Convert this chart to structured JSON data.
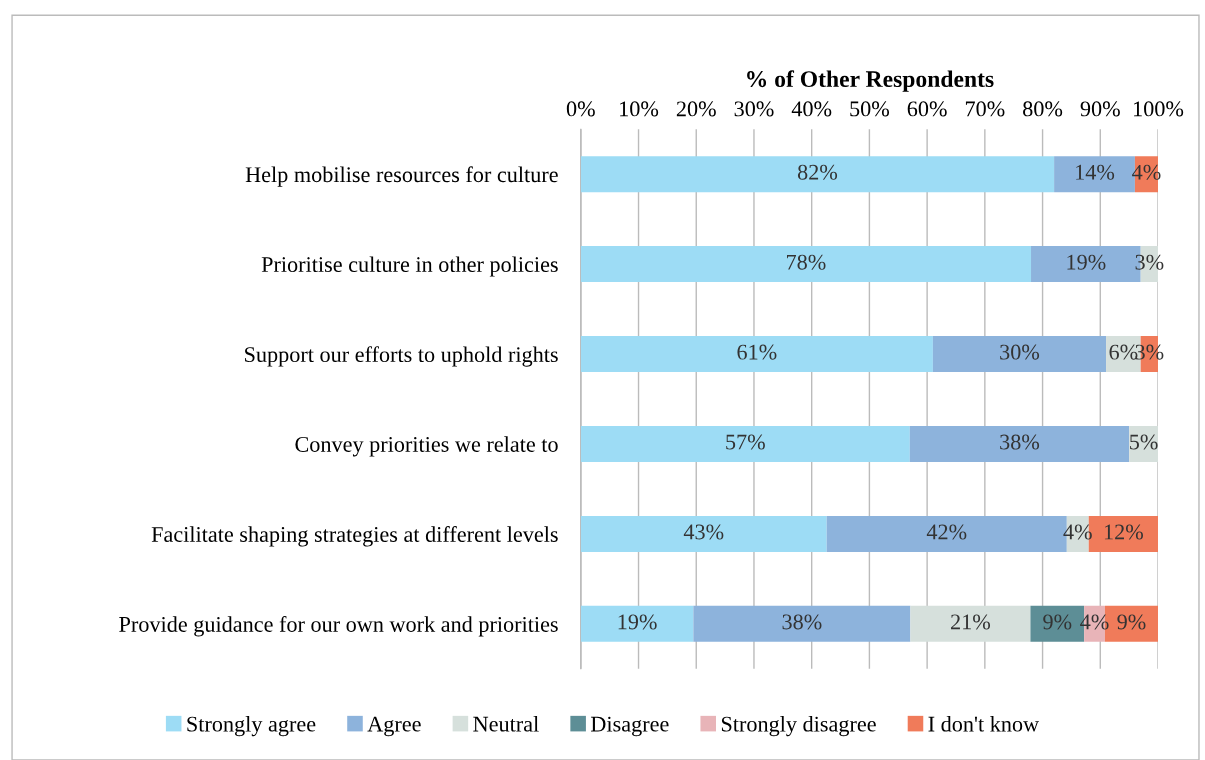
{
  "chart_data": {
    "type": "bar",
    "orientation": "horizontal",
    "stacked": true,
    "xlabel": "% of Other Respondents",
    "categories": [
      "Help mobilise resources for culture",
      "Prioritise culture in other policies",
      "Support our efforts to uphold rights",
      "Convey priorities we relate to",
      "Facilitate shaping strategies at different levels",
      "Provide guidance for our own work and priorities"
    ],
    "series": [
      {
        "name": "Strongly agree",
        "color": "#9ddcf5",
        "values": [
          82,
          78,
          61,
          57,
          42.6,
          19.5
        ],
        "value_labels": [
          "82%",
          "78%",
          "61%",
          "57%",
          "43%",
          "19%"
        ]
      },
      {
        "name": "Agree",
        "color": "#8db3dc",
        "values": [
          14,
          19,
          30,
          38,
          41.6,
          37.6
        ],
        "value_labels": [
          "14%",
          "19%",
          "30%",
          "38%",
          "42%",
          "38%"
        ]
      },
      {
        "name": "Neutral",
        "color": "#d6e0dc",
        "values": [
          null,
          3,
          6,
          5,
          3.8,
          20.8
        ],
        "value_labels": [
          null,
          "3%",
          "6%",
          "5%",
          "4%",
          "21%"
        ]
      },
      {
        "name": "Disagree",
        "color": "#5d8e96",
        "values": [
          null,
          null,
          null,
          null,
          null,
          9.3
        ],
        "value_labels": [
          null,
          null,
          null,
          null,
          null,
          "9%"
        ]
      },
      {
        "name": "Strongly disagree",
        "color": "#e8b4b8",
        "values": [
          null,
          null,
          null,
          null,
          null,
          3.6
        ],
        "value_labels": [
          null,
          null,
          null,
          null,
          null,
          "4%"
        ]
      },
      {
        "name": "I don't know",
        "color": "#f07b5a",
        "values": [
          4,
          null,
          3,
          null,
          12,
          9.2
        ],
        "value_labels": [
          "4%",
          null,
          "3%",
          null,
          "12%",
          "9%"
        ]
      }
    ],
    "xlim": [
      0,
      100
    ],
    "xticks": [
      {
        "value": 0,
        "label": "0%"
      },
      {
        "value": 10,
        "label": "10%"
      },
      {
        "value": 20,
        "label": "20%"
      },
      {
        "value": 30,
        "label": "30%"
      },
      {
        "value": 40,
        "label": "40%"
      },
      {
        "value": 50,
        "label": "50%"
      },
      {
        "value": 60,
        "label": "60%"
      },
      {
        "value": 70,
        "label": "70%"
      },
      {
        "value": 80,
        "label": "80%"
      },
      {
        "value": 90,
        "label": "90%"
      },
      {
        "value": 100,
        "label": "100%"
      }
    ],
    "grid": "x",
    "legend": "bottom"
  }
}
